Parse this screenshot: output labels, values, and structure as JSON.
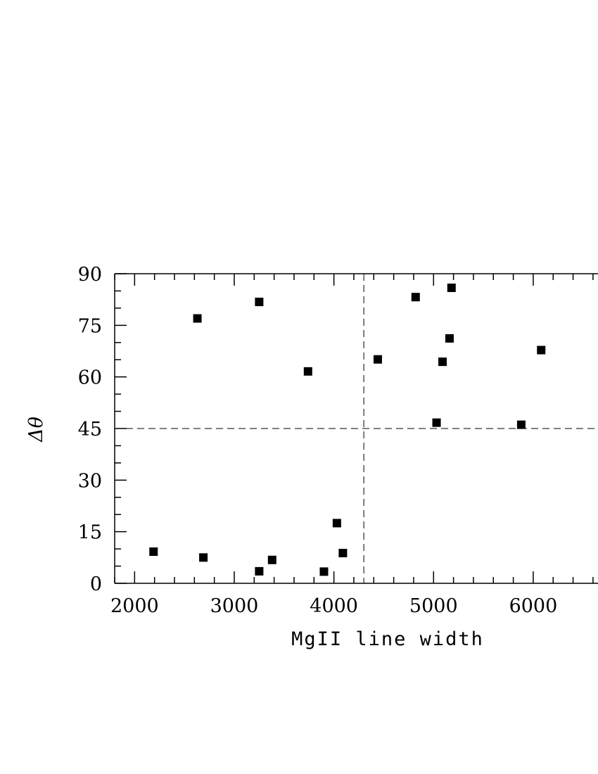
{
  "chart_data": {
    "type": "scatter",
    "title": "",
    "xlabel": "MgII line width",
    "ylabel": "Δθ",
    "xlim": [
      1800,
      6650
    ],
    "ylim": [
      0,
      90
    ],
    "x_ticks": [
      2000,
      3000,
      4000,
      5000,
      6000
    ],
    "y_ticks": [
      0,
      15,
      30,
      45,
      60,
      75,
      90
    ],
    "reference_lines": {
      "vertical_x": 4300,
      "horizontal_y": 45,
      "style": "dashed"
    },
    "marker": "filled-square",
    "grid": false,
    "points": [
      {
        "x": 2190,
        "y": 9.2
      },
      {
        "x": 2630,
        "y": 77.0
      },
      {
        "x": 2690,
        "y": 7.5
      },
      {
        "x": 3250,
        "y": 81.8
      },
      {
        "x": 3250,
        "y": 3.5
      },
      {
        "x": 3380,
        "y": 6.8
      },
      {
        "x": 3740,
        "y": 61.6
      },
      {
        "x": 3900,
        "y": 3.4
      },
      {
        "x": 4030,
        "y": 17.5
      },
      {
        "x": 4090,
        "y": 8.8
      },
      {
        "x": 4440,
        "y": 65.1
      },
      {
        "x": 4820,
        "y": 83.2
      },
      {
        "x": 5030,
        "y": 46.7
      },
      {
        "x": 5090,
        "y": 64.4
      },
      {
        "x": 5160,
        "y": 71.2
      },
      {
        "x": 5180,
        "y": 85.9
      },
      {
        "x": 5880,
        "y": 46.1
      },
      {
        "x": 6080,
        "y": 67.8
      }
    ],
    "colors": {
      "marker": "#000000",
      "axis": "#000000"
    }
  }
}
